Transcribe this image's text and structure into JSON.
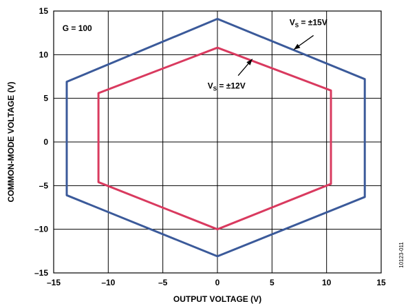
{
  "chart_data": {
    "type": "line",
    "xlabel": "OUTPUT VOLTAGE (V)",
    "ylabel": "COMMON-MODE VOLTAGE (V)",
    "xlim": [
      -15,
      15
    ],
    "ylim": [
      -15,
      15
    ],
    "x_ticks": [
      -15,
      -10,
      -5,
      0,
      5,
      10,
      15
    ],
    "y_ticks": [
      -15,
      -10,
      -5,
      0,
      5,
      10,
      15
    ],
    "x_tick_labels": [
      "–15",
      "–10",
      "–5",
      "0",
      "5",
      "10",
      "15"
    ],
    "y_tick_labels": [
      "–15",
      "–10",
      "–5",
      "0",
      "5",
      "10",
      "15"
    ],
    "grid": true,
    "series": [
      {
        "name": "VS = ±15V",
        "color": "#3b5a9a",
        "closed": true,
        "points": [
          [
            0,
            14.1
          ],
          [
            13.5,
            7.2
          ],
          [
            13.5,
            -6.3
          ],
          [
            0,
            -13.1
          ],
          [
            -13.8,
            -6.1
          ],
          [
            -13.8,
            6.9
          ]
        ]
      },
      {
        "name": "VS = ±12V",
        "color": "#d93a5f",
        "closed": true,
        "points": [
          [
            0,
            10.8
          ],
          [
            10.4,
            5.9
          ],
          [
            10.4,
            -4.8
          ],
          [
            0,
            -10.0
          ],
          [
            -10.9,
            -4.6
          ],
          [
            -10.9,
            5.6
          ]
        ]
      }
    ],
    "annotations": [
      {
        "text": "G = 100",
        "x": -14.2,
        "y": 12.7
      },
      {
        "text_main": "V",
        "text_sub": "S",
        "text_rest": " = ±15V",
        "x": 6.6,
        "y": 13.4,
        "arrow_from": [
          8.8,
          12.2
        ],
        "arrow_to": [
          7.0,
          10.6
        ]
      },
      {
        "text_main": "V",
        "text_sub": "S",
        "text_rest": " = ±12V",
        "x": -0.9,
        "y": 6.1,
        "arrow_from": [
          1.9,
          7.6
        ],
        "arrow_to": [
          3.2,
          9.5
        ]
      }
    ],
    "figure_id": "10123-011"
  }
}
